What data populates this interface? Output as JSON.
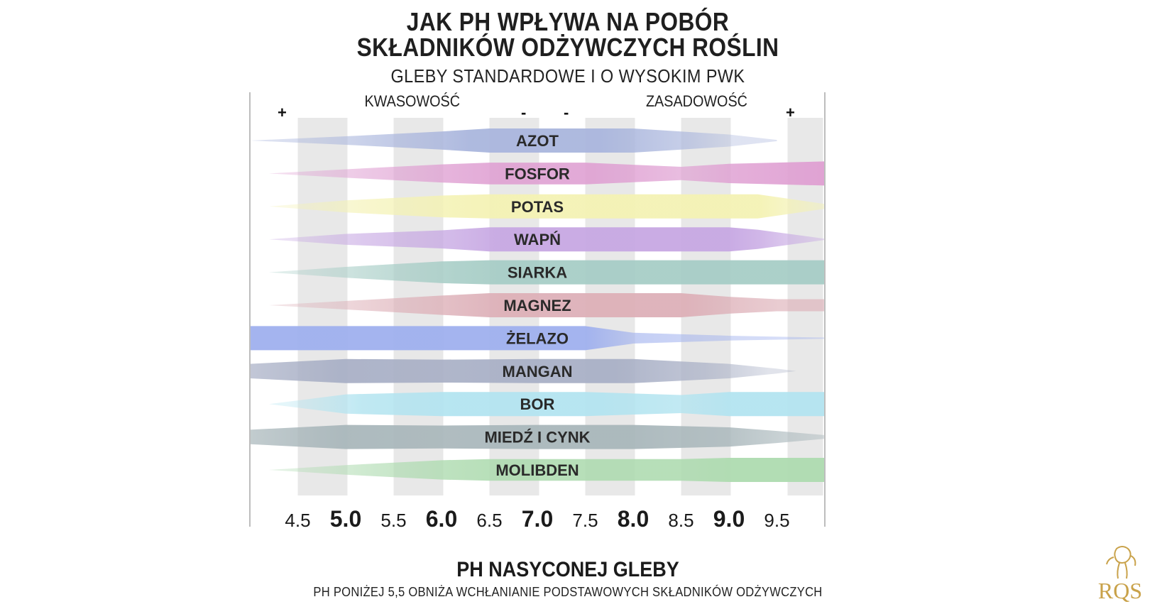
{
  "title_line1": "JAK PH WPŁYWA NA POBÓR",
  "title_line2": "SKŁADNIKÓW ODŻYWCZYCH ROŚLIN",
  "subtitle": "GLEBY STANDARDOWE I O WYSOKIM PWK",
  "acidity_label": "KWASOWOŚĆ",
  "alkalinity_label": "ZASADOWOŚĆ",
  "signs": [
    "+",
    "-",
    "-",
    "+"
  ],
  "xlabel": "PH NASYCONEJ GLEBY",
  "note": "PH PONIŻEJ 5,5 OBNIŻA WCHŁANIANIE PODSTAWOWYCH SKŁADNIKÓW ODŻYWCZYCH",
  "logo_text": "RQS",
  "colors": {
    "band": "#e8e8e8",
    "axis": "#bdbdbd",
    "logo": "#c9a24a"
  },
  "chart_data": {
    "type": "band",
    "xlim": [
      4.0,
      10.0
    ],
    "ticks": [
      {
        "value": 4.5,
        "label": "4.5",
        "major": false
      },
      {
        "value": 5.0,
        "label": "5.0",
        "major": true
      },
      {
        "value": 5.5,
        "label": "5.5",
        "major": false
      },
      {
        "value": 6.0,
        "label": "6.0",
        "major": true
      },
      {
        "value": 6.5,
        "label": "6.5",
        "major": false
      },
      {
        "value": 7.0,
        "label": "7.0",
        "major": true
      },
      {
        "value": 7.5,
        "label": "7.5",
        "major": false
      },
      {
        "value": 8.0,
        "label": "8.0",
        "major": true
      },
      {
        "value": 8.5,
        "label": "8.5",
        "major": false
      },
      {
        "value": 9.0,
        "label": "9.0",
        "major": true
      },
      {
        "value": 9.5,
        "label": "9.5",
        "major": false
      }
    ],
    "nutrients": [
      {
        "name": "AZOT",
        "color": "#aab6dd",
        "availability": [
          [
            4.0,
            0
          ],
          [
            5.0,
            0.35
          ],
          [
            6.0,
            0.75
          ],
          [
            6.5,
            1
          ],
          [
            8.0,
            1
          ],
          [
            8.5,
            0.75
          ],
          [
            9.0,
            0.5
          ],
          [
            9.5,
            0.05
          ]
        ]
      },
      {
        "name": "FOSFOR",
        "color": "#df9fd2",
        "availability": [
          [
            4.2,
            0
          ],
          [
            5.0,
            0.35
          ],
          [
            6.0,
            0.75
          ],
          [
            6.5,
            0.9
          ],
          [
            7.5,
            0.9
          ],
          [
            8.5,
            0.55
          ],
          [
            9.0,
            0.8
          ],
          [
            10.0,
            1
          ]
        ]
      },
      {
        "name": "POTAS",
        "color": "#f4f2b4",
        "availability": [
          [
            4.2,
            0
          ],
          [
            5.0,
            0.5
          ],
          [
            6.0,
            0.9
          ],
          [
            6.5,
            1
          ],
          [
            9.0,
            1
          ],
          [
            9.3,
            1
          ],
          [
            10.0,
            0.2
          ]
        ]
      },
      {
        "name": "WAPŃ",
        "color": "#c7a8e3",
        "availability": [
          [
            4.2,
            0
          ],
          [
            5.0,
            0.45
          ],
          [
            6.0,
            0.75
          ],
          [
            6.5,
            1
          ],
          [
            9.0,
            1
          ],
          [
            9.3,
            0.8
          ],
          [
            10.0,
            0.05
          ]
        ]
      },
      {
        "name": "SIARKA",
        "color": "#a7cdc6",
        "availability": [
          [
            4.2,
            0
          ],
          [
            5.0,
            0.45
          ],
          [
            6.0,
            0.9
          ],
          [
            6.5,
            1
          ],
          [
            10.0,
            1
          ]
        ]
      },
      {
        "name": "MAGNEZ",
        "color": "#ddb0b8",
        "availability": [
          [
            4.2,
            0
          ],
          [
            5.0,
            0.35
          ],
          [
            6.0,
            0.8
          ],
          [
            6.5,
            1
          ],
          [
            8.5,
            1
          ],
          [
            9.0,
            0.7
          ],
          [
            9.5,
            0.5
          ],
          [
            10.0,
            0.5
          ]
        ]
      },
      {
        "name": "ŻELAZO",
        "color": "#9fb0ee",
        "availability": [
          [
            4.0,
            1
          ],
          [
            5.0,
            1
          ],
          [
            6.5,
            1
          ],
          [
            7.5,
            1
          ],
          [
            8.0,
            0.45
          ],
          [
            9.0,
            0.2
          ],
          [
            10.0,
            0.05
          ]
        ]
      },
      {
        "name": "MANGAN",
        "color": "#a9b0c6",
        "availability": [
          [
            4.0,
            0.6
          ],
          [
            5.0,
            1
          ],
          [
            6.0,
            0.95
          ],
          [
            7.0,
            1
          ],
          [
            8.0,
            1
          ],
          [
            9.0,
            0.6
          ],
          [
            9.5,
            0.2
          ],
          [
            9.7,
            0
          ]
        ]
      },
      {
        "name": "BOR",
        "color": "#b3e4f0",
        "availability": [
          [
            4.2,
            0
          ],
          [
            5.0,
            0.8
          ],
          [
            6.0,
            1
          ],
          [
            7.5,
            1
          ],
          [
            8.5,
            0.75
          ],
          [
            9.0,
            1
          ],
          [
            10.0,
            1
          ]
        ]
      },
      {
        "name": "MIEDŹ I CYNK",
        "color": "#a9b7bb",
        "availability": [
          [
            4.0,
            0.6
          ],
          [
            5.0,
            1
          ],
          [
            6.0,
            0.95
          ],
          [
            7.0,
            1
          ],
          [
            8.0,
            1
          ],
          [
            9.0,
            0.8
          ],
          [
            9.5,
            0.5
          ],
          [
            10.0,
            0.15
          ]
        ]
      },
      {
        "name": "MOLIBDEN",
        "color": "#aedbb0",
        "availability": [
          [
            4.2,
            0
          ],
          [
            5.0,
            0.4
          ],
          [
            6.0,
            0.8
          ],
          [
            6.5,
            0.9
          ],
          [
            8.5,
            0.9
          ],
          [
            9.0,
            1
          ],
          [
            10.0,
            1
          ]
        ]
      }
    ]
  }
}
